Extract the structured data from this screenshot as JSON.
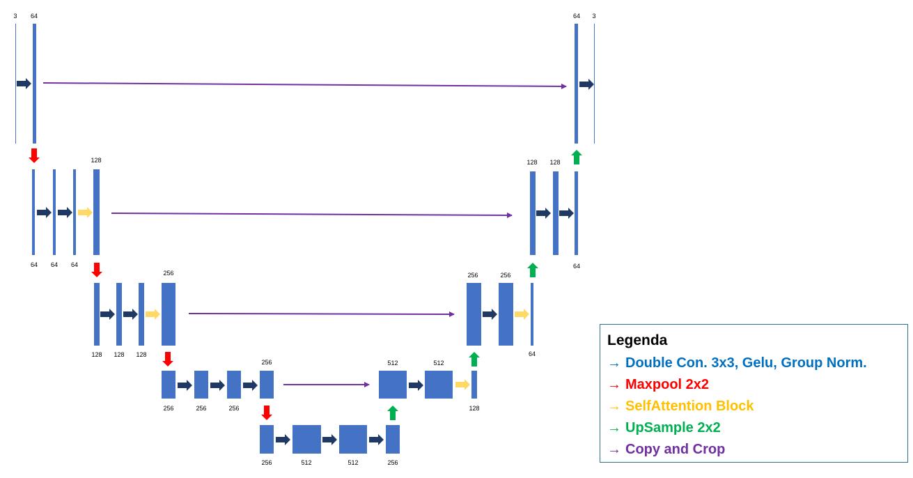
{
  "colors": {
    "block": "#4472c4",
    "double_conv": "#1f3864",
    "maxpool": "#ff0000",
    "self_attention": "#ffd966",
    "upsample": "#00b050",
    "copy_crop": "#7030a0"
  },
  "labels": {
    "top": [
      "3",
      "64",
      "64",
      "3"
    ],
    "l2": [
      "128",
      "64",
      "64",
      "64",
      "128",
      "128",
      "64"
    ],
    "l3": [
      "256",
      "128",
      "128",
      "128",
      "256",
      "256",
      "64"
    ],
    "l4": [
      "256",
      "256",
      "256",
      "256",
      "512",
      "512",
      "128"
    ],
    "l5": [
      "256",
      "512",
      "512",
      "256"
    ]
  },
  "legend": {
    "title": "Legenda",
    "items": [
      {
        "arrow": "→",
        "label": "Double Con. 3x3, Gelu, Group Norm.",
        "color": "#0070c0"
      },
      {
        "arrow": "→",
        "label": "Maxpool 2x2",
        "color": "#ff0000"
      },
      {
        "arrow": "→",
        "label": "SelfAttention Block",
        "color": "#ffc000"
      },
      {
        "arrow": "→",
        "label": "UpSample 2x2",
        "color": "#00b050"
      },
      {
        "arrow": "→",
        "label": "Copy and Crop",
        "color": "#7030a0"
      }
    ]
  }
}
